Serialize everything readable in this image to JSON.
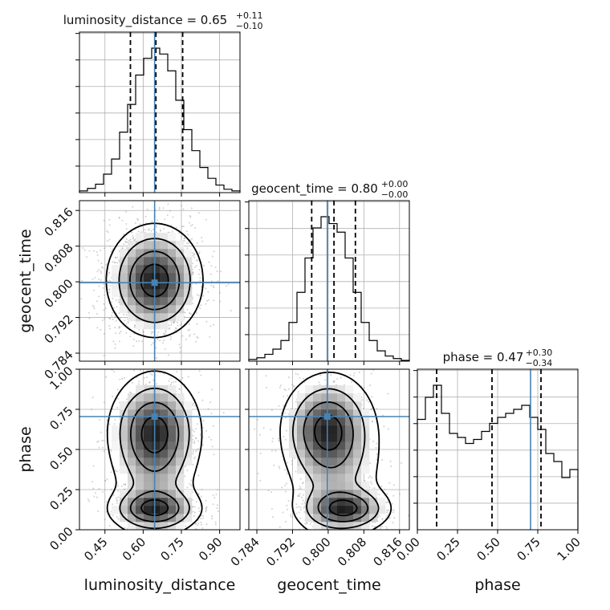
{
  "chart_data": {
    "type": "corner",
    "parameters": [
      "luminosity_distance",
      "geocent_time",
      "phase"
    ],
    "truths": {
      "luminosity_distance": 0.645,
      "geocent_time": 0.7998,
      "phase": 0.705
    },
    "truth_color": "#4682b4",
    "ranges": {
      "luminosity_distance": [
        0.35,
        0.98
      ],
      "geocent_time": [
        0.7822,
        0.8182
      ],
      "phase": [
        0.0,
        1.0
      ]
    },
    "ticks": {
      "luminosity_distance": {
        "values": [
          0.45,
          0.6,
          0.75,
          0.9
        ],
        "labels": [
          "0.45",
          "0.60",
          "0.75",
          "0.90"
        ]
      },
      "geocent_time": {
        "values": [
          0.784,
          0.792,
          0.8,
          0.808,
          0.816
        ],
        "labels": [
          "0.784",
          "0.792",
          "0.800",
          "0.808",
          "0.816"
        ]
      },
      "phase": {
        "values": [
          0.0,
          0.25,
          0.5,
          0.75,
          1.0
        ],
        "labels": [
          "0.00",
          "0.25",
          "0.50",
          "0.75",
          "1.00"
        ]
      }
    },
    "titles": [
      {
        "param": "luminosity_distance",
        "main": "luminosity_distance = 0.65",
        "sup": "+0.11",
        "sub": "−0.10"
      },
      {
        "param": "geocent_time",
        "main": "geocent_time = 0.80",
        "sup": "+0.00",
        "sub": "−0.00"
      },
      {
        "param": "phase",
        "main": "phase = 0.47",
        "sup": "+0.30",
        "sub": "−0.34"
      }
    ],
    "quantiles": {
      "luminosity_distance": [
        0.55,
        0.65,
        0.755
      ],
      "geocent_time": [
        0.7963,
        0.8013,
        0.8061
      ],
      "phase": [
        0.12,
        0.465,
        0.77
      ]
    },
    "histograms_1d": {
      "luminosity_distance": {
        "edges": [
          0.35,
          0.3815,
          0.413,
          0.4445,
          0.476,
          0.5075,
          0.539,
          0.5705,
          0.602,
          0.6335,
          0.665,
          0.6965,
          0.728,
          0.7595,
          0.791,
          0.8225,
          0.854,
          0.8855,
          0.917,
          0.9485,
          0.98
        ],
        "counts": [
          2,
          5,
          10,
          22,
          40,
          72,
          105,
          140,
          160,
          172,
          165,
          145,
          110,
          75,
          50,
          30,
          17,
          9,
          4,
          2
        ]
      },
      "geocent_time": {
        "edges": [
          0.7822,
          0.784,
          0.7858,
          0.7876,
          0.7894,
          0.7912,
          0.793,
          0.7948,
          0.7966,
          0.7984,
          0.8002,
          0.802,
          0.8038,
          0.8056,
          0.8074,
          0.8092,
          0.811,
          0.8128,
          0.8146,
          0.8164,
          0.8182
        ],
        "counts": [
          2,
          4,
          8,
          14,
          24,
          45,
          80,
          120,
          155,
          168,
          160,
          150,
          120,
          80,
          45,
          24,
          12,
          6,
          3,
          1
        ]
      },
      "phase": {
        "edges": [
          0.0,
          0.05,
          0.1,
          0.15,
          0.2,
          0.25,
          0.3,
          0.35,
          0.4,
          0.45,
          0.5,
          0.55,
          0.6,
          0.65,
          0.7,
          0.75,
          0.8,
          0.85,
          0.9,
          0.95,
          1.0
        ],
        "counts": [
          0.55,
          0.66,
          0.72,
          0.58,
          0.48,
          0.46,
          0.43,
          0.45,
          0.49,
          0.53,
          0.56,
          0.58,
          0.6,
          0.62,
          0.56,
          0.5,
          0.38,
          0.34,
          0.26,
          0.3
        ]
      }
    },
    "density_2d": [
      {
        "x": "luminosity_distance",
        "y": "geocent_time",
        "blobs": [
          {
            "cx": 0.645,
            "cy": 0.8003,
            "sx": 0.092,
            "sy": 0.0062,
            "w": 1.0
          }
        ],
        "points": 1500
      },
      {
        "x": "luminosity_distance",
        "y": "phase",
        "blobs": [
          {
            "cx": 0.645,
            "cy": 0.13,
            "sx": 0.09,
            "sy": 0.07,
            "w": 1.0
          },
          {
            "cx": 0.645,
            "cy": 0.62,
            "sx": 0.09,
            "sy": 0.17,
            "w": 0.95
          },
          {
            "cx": 0.645,
            "cy": 0.4,
            "sx": 0.09,
            "sy": 0.3,
            "w": 0.45
          }
        ],
        "points": 1400
      },
      {
        "x": "geocent_time",
        "y": "phase",
        "blobs": [
          {
            "cx": 0.8038,
            "cy": 0.13,
            "sx": 0.005,
            "sy": 0.07,
            "w": 1.0
          },
          {
            "cx": 0.7996,
            "cy": 0.63,
            "sx": 0.005,
            "sy": 0.16,
            "w": 0.95
          },
          {
            "cx": 0.8015,
            "cy": 0.4,
            "sx": 0.006,
            "sy": 0.3,
            "w": 0.45
          }
        ],
        "points": 1400
      }
    ],
    "xlabels": {
      "luminosity_distance": "luminosity_distance",
      "geocent_time": "geocent_time",
      "phase": "phase"
    },
    "ylabels": {
      "geocent_time": "geocent_time",
      "phase": "phase"
    },
    "grid": true
  }
}
